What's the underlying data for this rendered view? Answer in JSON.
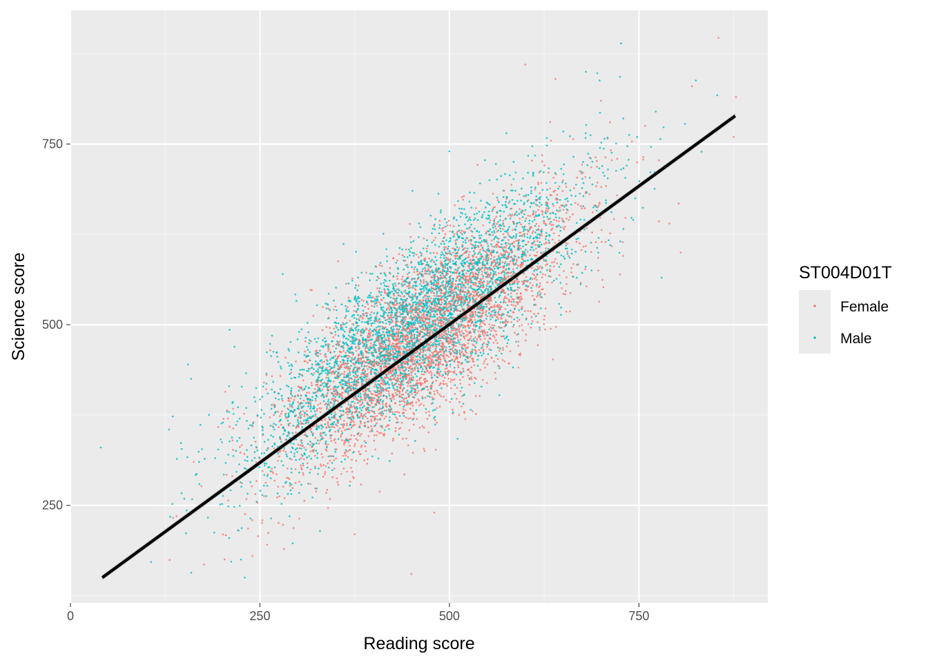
{
  "colors": {
    "panel": "#EBEBEB",
    "grid_major": "#FFFFFF",
    "grid_minor": "#F5F5F5",
    "tick": "#333333",
    "fit_line": "#000000",
    "ribbon": "#999999",
    "legend_key": "#EBEBEB"
  },
  "chart_data": {
    "type": "scatter",
    "xlabel": "Reading score",
    "ylabel": "Science score",
    "xlim": [
      0,
      920
    ],
    "ylim": [
      115,
      935
    ],
    "x_ticks": [
      0,
      250,
      500,
      750
    ],
    "x_minor_ticks": [
      125,
      375,
      625,
      875
    ],
    "y_ticks": [
      250,
      500,
      750
    ],
    "y_minor_ticks": [
      125,
      375,
      625,
      875
    ],
    "grid": true,
    "legend": {
      "title": "ST004D01T",
      "position": "right",
      "entries": [
        {
          "label": "Female",
          "color": "#F8766D"
        },
        {
          "label": "Male",
          "color": "#00BFC4"
        }
      ]
    },
    "series": [
      {
        "name": "Female",
        "color": "#F8766D",
        "count": 3800,
        "x_mean": 470,
        "x_sd": 98,
        "y_intercept": 128,
        "y_slope": 0.76,
        "y_resid_sd": 55,
        "outliers": [
          [
            855,
            897
          ],
          [
            820,
            830
          ],
          [
            878,
            815
          ],
          [
            875,
            760
          ],
          [
            600,
            860
          ],
          [
            640,
            840
          ],
          [
            700,
            810
          ],
          [
            805,
            600
          ],
          [
            790,
            640
          ],
          [
            240,
            180
          ],
          [
            450,
            155
          ],
          [
            140,
            235
          ],
          [
            480,
            240
          ],
          [
            375,
            210
          ]
        ]
      },
      {
        "name": "Male",
        "color": "#00BFC4",
        "count": 3800,
        "x_mean": 455,
        "x_sd": 105,
        "y_intercept": 155,
        "y_slope": 0.76,
        "y_resid_sd": 55,
        "outliers": [
          [
            40,
            330
          ],
          [
            135,
            373
          ],
          [
            155,
            445
          ],
          [
            210,
            493
          ],
          [
            680,
            850
          ],
          [
            695,
            848
          ],
          [
            725,
            843
          ],
          [
            825,
            838
          ],
          [
            780,
            565
          ],
          [
            230,
            150
          ],
          [
            225,
            175
          ],
          [
            575,
            765
          ],
          [
            500,
            740
          ],
          [
            280,
            570
          ]
        ]
      }
    ],
    "fit": {
      "method": "lm",
      "x_start": 42,
      "x_end": 877,
      "y_start": 150,
      "y_end": 789
    }
  }
}
